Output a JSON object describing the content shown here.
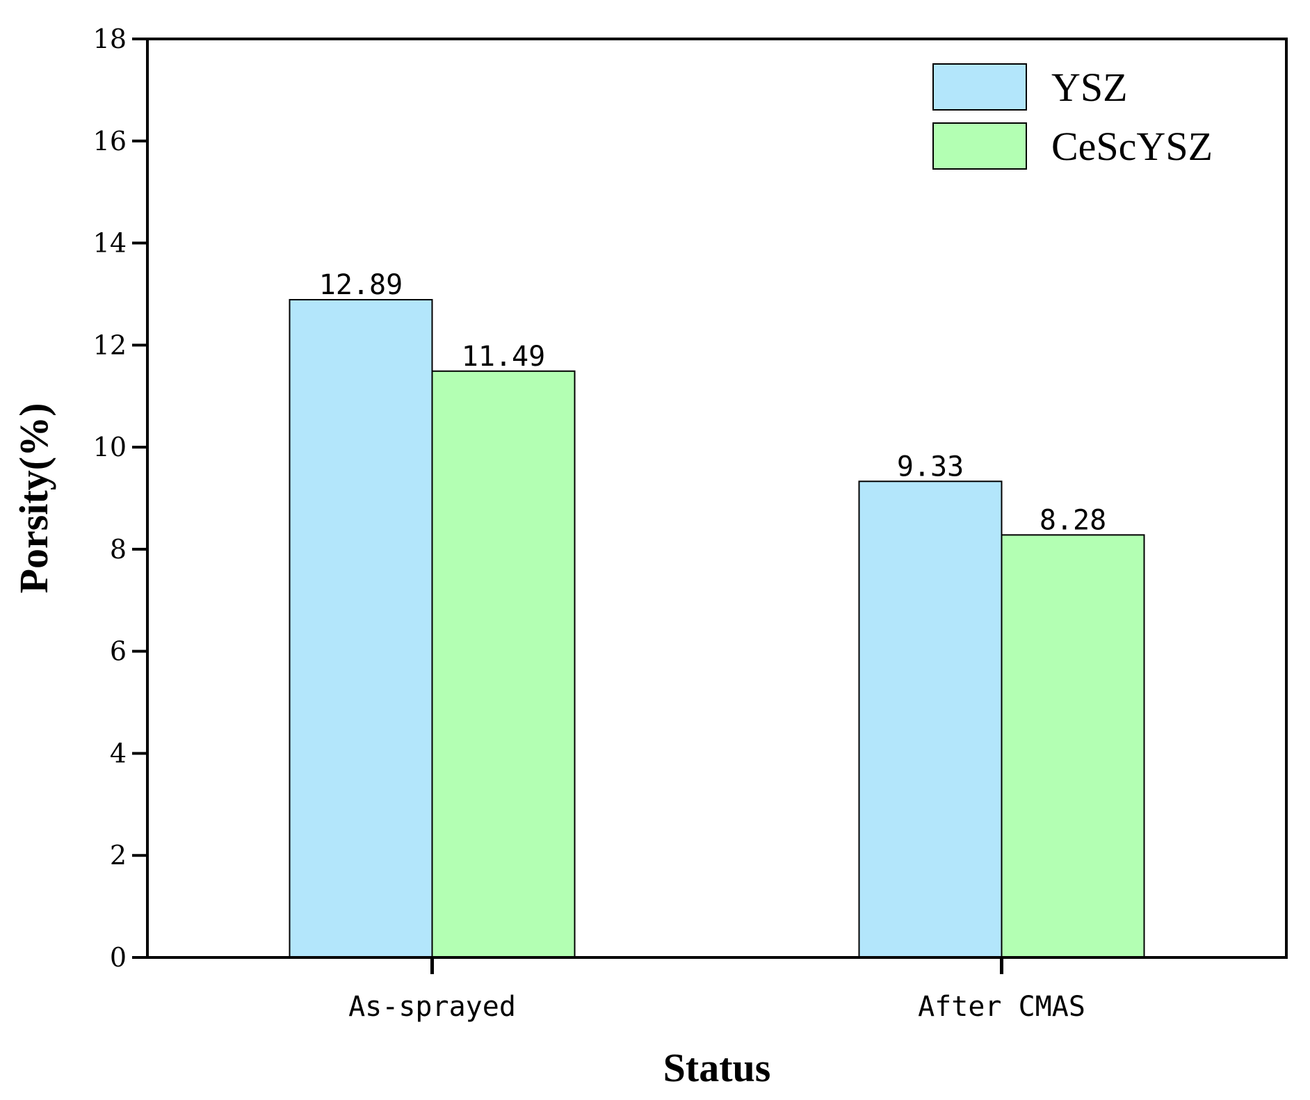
{
  "chart_data": {
    "type": "bar",
    "title": "",
    "xlabel": "Status",
    "ylabel": "Porsity(%)",
    "categories": [
      "As-sprayed",
      "After CMAS"
    ],
    "series": [
      {
        "name": "YSZ",
        "values": [
          12.89,
          9.33
        ],
        "labels": [
          "12.89",
          "9.33"
        ],
        "color": "#B3E6FB"
      },
      {
        "name": "CeScYSZ",
        "values": [
          11.49,
          8.28
        ],
        "labels": [
          "11.49",
          "8.28"
        ],
        "color": "#B3FFB3"
      }
    ],
    "ylim": [
      0,
      18
    ],
    "yticks": [
      0,
      2,
      4,
      6,
      8,
      10,
      12,
      14,
      16,
      18
    ],
    "grid": false,
    "legend": {
      "position": "top-right"
    }
  }
}
